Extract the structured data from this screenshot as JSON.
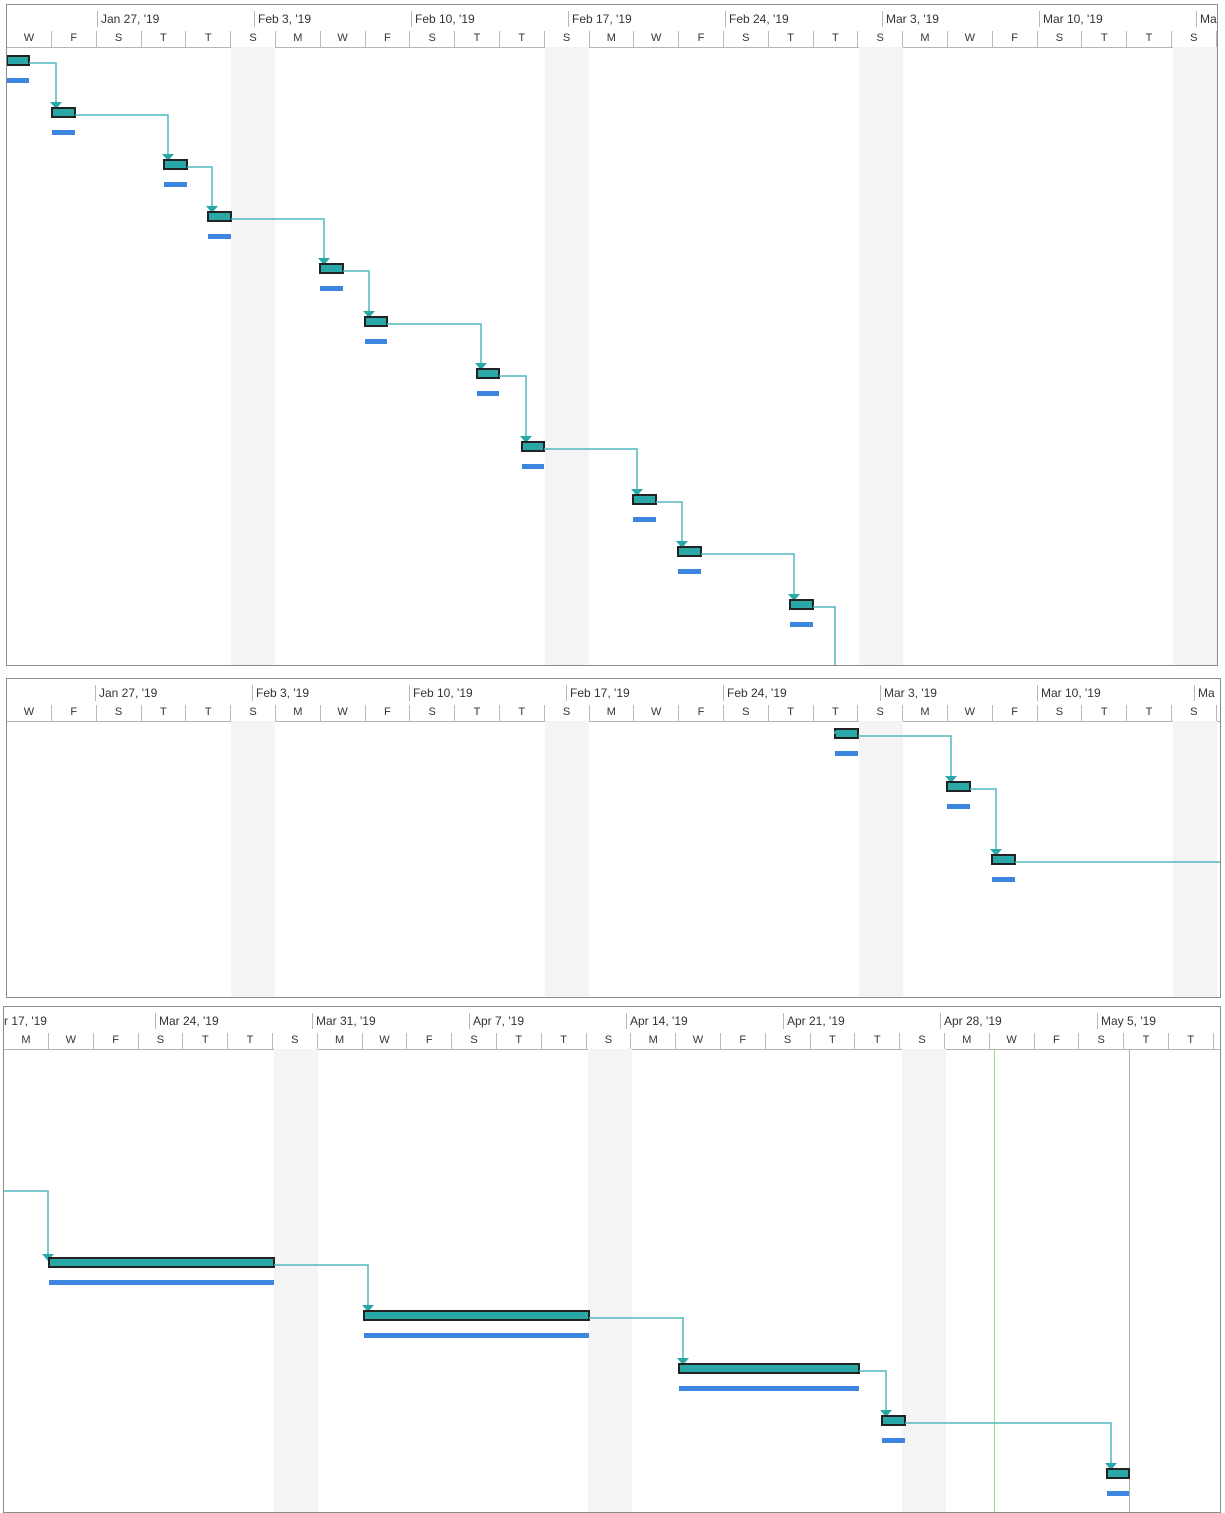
{
  "colors": {
    "task_bar": "#2aa8a8",
    "task_border": "#222222",
    "baseline_bar": "#3d86e0",
    "link_line": "#4fb8c0",
    "weekend_shade": "#f4f4f4",
    "status_line": "#9fd48c",
    "grid_line": "#b8b8b8"
  },
  "panels": [
    {
      "name": "panel-1",
      "weeks": [
        "Jan 27, '19",
        "Feb 3, '19",
        "Feb 10, '19",
        "Feb 17, '19",
        "Feb 24, '19",
        "Mar 3, '19",
        "Mar 10, '19",
        "Ma"
      ],
      "days": [
        "W",
        "F",
        "S",
        "T",
        "T",
        "S",
        "M",
        "W",
        "F",
        "S",
        "T",
        "T",
        "S",
        "M",
        "W",
        "F",
        "S",
        "T",
        "T",
        "S",
        "M",
        "W",
        "F",
        "S",
        "T",
        "T",
        "S"
      ]
    },
    {
      "name": "panel-2",
      "weeks": [
        "Jan 27, '19",
        "Feb 3, '19",
        "Feb 10, '19",
        "Feb 17, '19",
        "Feb 24, '19",
        "Mar 3, '19",
        "Mar 10, '19",
        "Ma"
      ],
      "days": [
        "W",
        "F",
        "S",
        "T",
        "T",
        "S",
        "M",
        "W",
        "F",
        "S",
        "T",
        "T",
        "S",
        "M",
        "W",
        "F",
        "S",
        "T",
        "T",
        "S",
        "M",
        "W",
        "F",
        "S",
        "T",
        "T",
        "S"
      ]
    },
    {
      "name": "panel-3",
      "weeks": [
        "r 17, '19",
        "Mar 24, '19",
        "Mar 31, '19",
        "Apr 7, '19",
        "Apr 14, '19",
        "Apr 21, '19",
        "Apr 28, '19",
        "May 5, '19"
      ],
      "days": [
        "M",
        "W",
        "F",
        "S",
        "T",
        "T",
        "S",
        "M",
        "W",
        "F",
        "S",
        "T",
        "T",
        "S",
        "M",
        "W",
        "F",
        "S",
        "T",
        "T",
        "S",
        "M",
        "W",
        "F",
        "S",
        "T",
        "T"
      ]
    }
  ]
}
